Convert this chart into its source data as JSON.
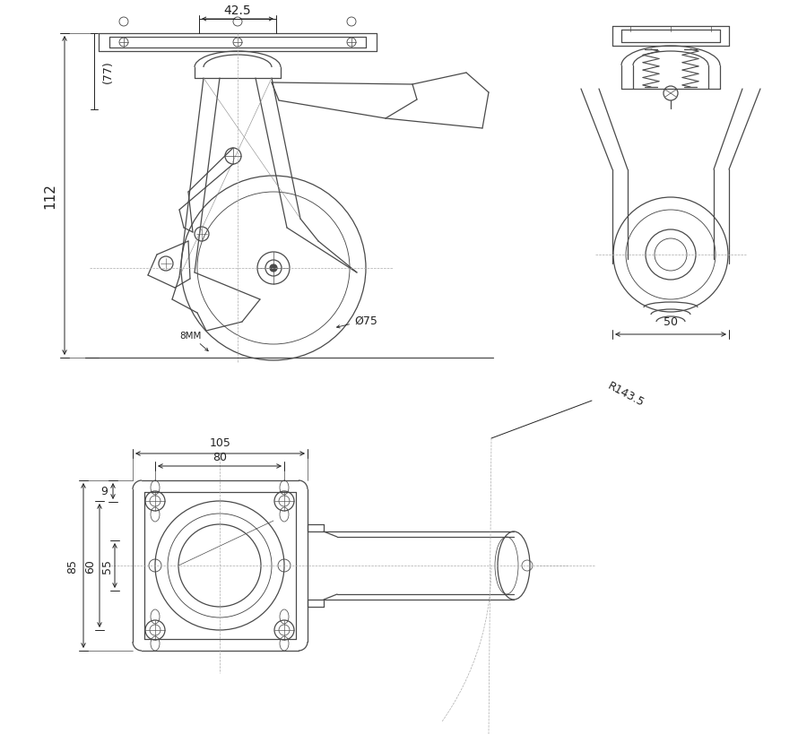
{
  "bg_color": "#ffffff",
  "line_color": "#4a4a4a",
  "dim_color": "#222222",
  "lw": 0.9,
  "dlw": 0.7,
  "annotations": {
    "dim_42_5": "42.5",
    "dim_77": "(77)",
    "dim_112": "112",
    "dim_8mm": "8MM",
    "dim_75": "Ø75",
    "dim_50": "50",
    "dim_105": "105",
    "dim_80": "80",
    "dim_9": "9",
    "dim_85": "85",
    "dim_60": "60",
    "dim_55": "55",
    "dim_R143": "R143.5"
  }
}
